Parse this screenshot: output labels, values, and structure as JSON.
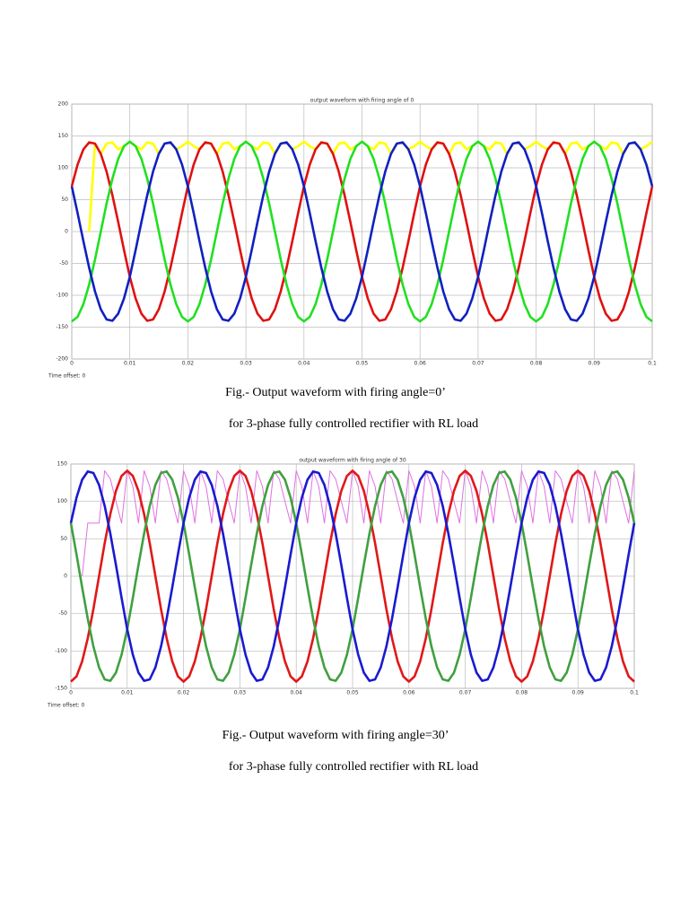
{
  "chart_data": [
    {
      "type": "line",
      "title": "output waveform with firing angle of 0",
      "note": "Time offset: 0",
      "caption": [
        "Fig.- Output waveform with firing angle=0’",
        "for 3-phase fully controlled rectifier with RL load"
      ],
      "xlim": [
        0,
        0.1
      ],
      "ylim": [
        -200,
        200
      ],
      "xticks": [
        0,
        0.01,
        0.02,
        0.03,
        0.04,
        0.05,
        0.06,
        0.07,
        0.08,
        0.09,
        0.1
      ],
      "yticks": [
        -200,
        -150,
        -100,
        -50,
        0,
        50,
        100,
        150,
        200
      ],
      "grid": true,
      "x": [
        0,
        0.001,
        0.002,
        0.003,
        0.004,
        0.005,
        0.006,
        0.007,
        0.008,
        0.009,
        0.01,
        0.011,
        0.012,
        0.013,
        0.014,
        0.015,
        0.016,
        0.017,
        0.018,
        0.019,
        0.02,
        0.021,
        0.022,
        0.023,
        0.024,
        0.025,
        0.026,
        0.027,
        0.028,
        0.029,
        0.03,
        0.031,
        0.032,
        0.033,
        0.034,
        0.035,
        0.036,
        0.037,
        0.038,
        0.039,
        0.04,
        0.041,
        0.042,
        0.043,
        0.044,
        0.045,
        0.046,
        0.047,
        0.048,
        0.049,
        0.05,
        0.051,
        0.052,
        0.053,
        0.054,
        0.055,
        0.056,
        0.057,
        0.058,
        0.059,
        0.06,
        0.061,
        0.062,
        0.063,
        0.064,
        0.065,
        0.066,
        0.067,
        0.068,
        0.069,
        0.07,
        0.071,
        0.072,
        0.073,
        0.074,
        0.075,
        0.076,
        0.077,
        0.078,
        0.079,
        0.08,
        0.081,
        0.082,
        0.083,
        0.084,
        0.085,
        0.086,
        0.087,
        0.088,
        0.089,
        0.09,
        0.091,
        0.092,
        0.093,
        0.094,
        0.095,
        0.096,
        0.097,
        0.098,
        0.099,
        0.1
      ],
      "series": [
        {
          "color": "#ffff00",
          "values": [
            null,
            null,
            null,
            0,
            138,
            122,
            138,
            140,
            129,
            134,
            141,
            134,
            129,
            140,
            138,
            122,
            138,
            140,
            129,
            134,
            141,
            134,
            129,
            140,
            138,
            122,
            138,
            140,
            129,
            134,
            141,
            134,
            129,
            140,
            138,
            122,
            138,
            140,
            129,
            134,
            141,
            134,
            129,
            140,
            138,
            122,
            138,
            140,
            129,
            134,
            141,
            134,
            129,
            140,
            138,
            122,
            138,
            140,
            129,
            134,
            141,
            134,
            129,
            140,
            138,
            122,
            138,
            140,
            129,
            134,
            141,
            134,
            129,
            140,
            138,
            122,
            138,
            140,
            129,
            134,
            141,
            134,
            129,
            140,
            138,
            122,
            138,
            140,
            129,
            134,
            141,
            134,
            129,
            140,
            138,
            122,
            138,
            140,
            129,
            134,
            141
          ]
        },
        {
          "color": "#e01010",
          "values": [
            71,
            105,
            129,
            140,
            138,
            122,
            94,
            57,
            15,
            -29,
            -71,
            -105,
            -129,
            -140,
            -138,
            -122,
            -94,
            -57,
            -15,
            29,
            71,
            105,
            129,
            140,
            138,
            122,
            94,
            57,
            15,
            -29,
            -71,
            -105,
            -129,
            -140,
            -138,
            -122,
            -94,
            -57,
            -15,
            29,
            71,
            105,
            129,
            140,
            138,
            122,
            94,
            57,
            15,
            -29,
            -71,
            -105,
            -129,
            -140,
            -138,
            -122,
            -94,
            -57,
            -15,
            29,
            71,
            105,
            129,
            140,
            138,
            122,
            94,
            57,
            15,
            -29,
            -71,
            -105,
            -129,
            -140,
            -138,
            -122,
            -94,
            -57,
            -15,
            29,
            71,
            105,
            129,
            140,
            138,
            122,
            94,
            57,
            15,
            -29,
            -71,
            -105,
            -129,
            -140,
            -138,
            -122,
            -94,
            -57,
            -15,
            29,
            71
          ]
        },
        {
          "color": "#20e020",
          "values": [
            -141,
            -134,
            -114,
            -83,
            -44,
            0,
            44,
            83,
            114,
            134,
            141,
            134,
            114,
            83,
            44,
            0,
            -44,
            -83,
            -114,
            -134,
            -141,
            -134,
            -114,
            -83,
            -44,
            0,
            44,
            83,
            114,
            134,
            141,
            134,
            114,
            83,
            44,
            0,
            -44,
            -83,
            -114,
            -134,
            -141,
            -134,
            -114,
            -83,
            -44,
            0,
            44,
            83,
            114,
            134,
            141,
            134,
            114,
            83,
            44,
            0,
            -44,
            -83,
            -114,
            -134,
            -141,
            -134,
            -114,
            -83,
            -44,
            0,
            44,
            83,
            114,
            134,
            141,
            134,
            114,
            83,
            44,
            0,
            -44,
            -83,
            -114,
            -134,
            -141,
            -134,
            -114,
            -83,
            -44,
            0,
            44,
            83,
            114,
            134,
            141,
            134,
            114,
            83,
            44,
            0,
            -44,
            -83,
            -114,
            -134,
            -141
          ]
        },
        {
          "color": "#1020c0",
          "values": [
            71,
            29,
            -15,
            -57,
            -94,
            -122,
            -138,
            -140,
            -129,
            -105,
            -71,
            -29,
            15,
            57,
            94,
            122,
            138,
            140,
            129,
            105,
            71,
            29,
            -15,
            -57,
            -94,
            -122,
            -138,
            -140,
            -129,
            -105,
            -71,
            -29,
            15,
            57,
            94,
            122,
            138,
            140,
            129,
            105,
            71,
            29,
            -15,
            -57,
            -94,
            -122,
            -138,
            -140,
            -129,
            -105,
            -71,
            -29,
            15,
            57,
            94,
            122,
            138,
            140,
            129,
            105,
            71,
            29,
            -15,
            -57,
            -94,
            -122,
            -138,
            -140,
            -129,
            -105,
            -71,
            -29,
            15,
            57,
            94,
            122,
            138,
            140,
            129,
            105,
            71,
            29,
            -15,
            -57,
            -94,
            -122,
            -138,
            -140,
            -129,
            -105,
            -71,
            -29,
            15,
            57,
            94,
            122,
            138,
            140,
            129,
            105,
            71
          ]
        }
      ]
    },
    {
      "type": "line",
      "title": "output waveform with firing angle of 30",
      "note": "Time offset: 0",
      "caption": [
        "Fig.- Output waveform with firing angle=30’",
        "for 3-phase fully controlled rectifier with RL load"
      ],
      "xlim": [
        0,
        0.1
      ],
      "ylim": [
        -150,
        150
      ],
      "xticks": [
        0,
        0.01,
        0.02,
        0.03,
        0.04,
        0.05,
        0.06,
        0.07,
        0.08,
        0.09,
        0.1
      ],
      "yticks": [
        -150,
        -100,
        -50,
        0,
        50,
        100,
        150
      ],
      "grid": true,
      "x": [
        0,
        0.001,
        0.002,
        0.003,
        0.004,
        0.005,
        0.006,
        0.007,
        0.008,
        0.009,
        0.01,
        0.011,
        0.012,
        0.013,
        0.014,
        0.015,
        0.016,
        0.017,
        0.018,
        0.019,
        0.02,
        0.021,
        0.022,
        0.023,
        0.024,
        0.025,
        0.026,
        0.027,
        0.028,
        0.029,
        0.03,
        0.031,
        0.032,
        0.033,
        0.034,
        0.035,
        0.036,
        0.037,
        0.038,
        0.039,
        0.04,
        0.041,
        0.042,
        0.043,
        0.044,
        0.045,
        0.046,
        0.047,
        0.048,
        0.049,
        0.05,
        0.051,
        0.052,
        0.053,
        0.054,
        0.055,
        0.056,
        0.057,
        0.058,
        0.059,
        0.06,
        0.061,
        0.062,
        0.063,
        0.064,
        0.065,
        0.066,
        0.067,
        0.068,
        0.069,
        0.07,
        0.071,
        0.072,
        0.073,
        0.074,
        0.075,
        0.076,
        0.077,
        0.078,
        0.079,
        0.08,
        0.081,
        0.082,
        0.083,
        0.084,
        0.085,
        0.086,
        0.087,
        0.088,
        0.089,
        0.09,
        0.091,
        0.092,
        0.093,
        0.094,
        0.095,
        0.096,
        0.097,
        0.098,
        0.099,
        0.1
      ],
      "series": [
        {
          "color": "#e070e0",
          "values": [
            null,
            null,
            0,
            71,
            71,
            71,
            141,
            130,
            100,
            71,
            141,
            120,
            71,
            141,
            120,
            71,
            141,
            130,
            100,
            71,
            141,
            120,
            71,
            141,
            120,
            71,
            141,
            130,
            100,
            71,
            141,
            120,
            71,
            141,
            120,
            71,
            141,
            130,
            100,
            71,
            141,
            120,
            71,
            141,
            120,
            71,
            141,
            130,
            100,
            71,
            141,
            120,
            71,
            141,
            120,
            71,
            141,
            130,
            100,
            71,
            141,
            120,
            71,
            141,
            120,
            71,
            141,
            130,
            100,
            71,
            141,
            120,
            71,
            141,
            120,
            71,
            141,
            130,
            100,
            71,
            141,
            120,
            71,
            141,
            120,
            71,
            141,
            130,
            100,
            71,
            141,
            120,
            71,
            141,
            120,
            71,
            141,
            130,
            100,
            71,
            141
          ]
        },
        {
          "color": "#e01818",
          "values": [
            -141,
            -134,
            -114,
            -83,
            -44,
            0,
            44,
            83,
            114,
            134,
            141,
            134,
            114,
            83,
            44,
            0,
            -44,
            -83,
            -114,
            -134,
            -141,
            -134,
            -114,
            -83,
            -44,
            0,
            44,
            83,
            114,
            134,
            141,
            134,
            114,
            83,
            44,
            0,
            -44,
            -83,
            -114,
            -134,
            -141,
            -134,
            -114,
            -83,
            -44,
            0,
            44,
            83,
            114,
            134,
            141,
            134,
            114,
            83,
            44,
            0,
            -44,
            -83,
            -114,
            -134,
            -141,
            -134,
            -114,
            -83,
            -44,
            0,
            44,
            83,
            114,
            134,
            141,
            134,
            114,
            83,
            44,
            0,
            -44,
            -83,
            -114,
            -134,
            -141,
            -134,
            -114,
            -83,
            -44,
            0,
            44,
            83,
            114,
            134,
            141,
            134,
            114,
            83,
            44,
            0,
            -44,
            -83,
            -114,
            -134,
            -141
          ]
        },
        {
          "color": "#40a040",
          "values": [
            71,
            29,
            -15,
            -57,
            -94,
            -122,
            -138,
            -140,
            -129,
            -105,
            -71,
            -29,
            15,
            57,
            94,
            122,
            138,
            140,
            129,
            105,
            71,
            29,
            -15,
            -57,
            -94,
            -122,
            -138,
            -140,
            -129,
            -105,
            -71,
            -29,
            15,
            57,
            94,
            122,
            138,
            140,
            129,
            105,
            71,
            29,
            -15,
            -57,
            -94,
            -122,
            -138,
            -140,
            -129,
            -105,
            -71,
            -29,
            15,
            57,
            94,
            122,
            138,
            140,
            129,
            105,
            71,
            29,
            -15,
            -57,
            -94,
            -122,
            -138,
            -140,
            -129,
            -105,
            -71,
            -29,
            15,
            57,
            94,
            122,
            138,
            140,
            129,
            105,
            71,
            29,
            -15,
            -57,
            -94,
            -122,
            -138,
            -140,
            -129,
            -105,
            -71,
            -29,
            15,
            57,
            94,
            122,
            138,
            140,
            129,
            105,
            71
          ]
        },
        {
          "color": "#1a1ad0",
          "values": [
            71,
            105,
            129,
            140,
            138,
            122,
            94,
            57,
            15,
            -29,
            -71,
            -105,
            -129,
            -140,
            -138,
            -122,
            -94,
            -57,
            -15,
            29,
            71,
            105,
            129,
            140,
            138,
            122,
            94,
            57,
            15,
            -29,
            -71,
            -105,
            -129,
            -140,
            -138,
            -122,
            -94,
            -57,
            -15,
            29,
            71,
            105,
            129,
            140,
            138,
            122,
            94,
            57,
            15,
            -29,
            -71,
            -105,
            -129,
            -140,
            -138,
            -122,
            -94,
            -57,
            -15,
            29,
            71,
            105,
            129,
            140,
            138,
            122,
            94,
            57,
            15,
            -29,
            -71,
            -105,
            -129,
            -140,
            -138,
            -122,
            -94,
            -57,
            -15,
            29,
            71,
            105,
            129,
            140,
            138,
            122,
            94,
            57,
            15,
            -29,
            -71,
            -105,
            -129,
            -140,
            -138,
            -122,
            -94,
            -57,
            -15,
            29,
            71
          ]
        }
      ]
    }
  ]
}
